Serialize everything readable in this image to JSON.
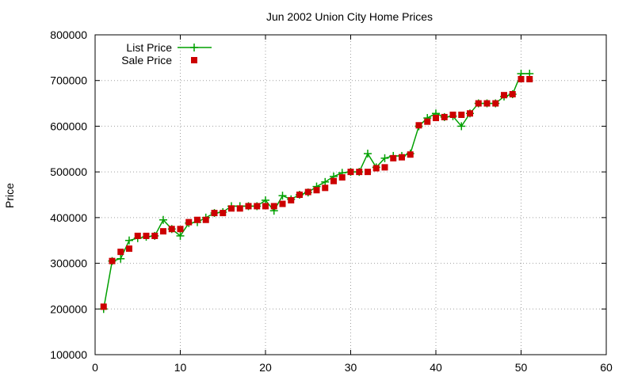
{
  "chart_data": {
    "type": "line",
    "title": "Jun 2002 Union City Home Prices",
    "xlabel": "",
    "ylabel": "Price",
    "xlim": [
      0,
      60
    ],
    "ylim": [
      100000,
      800000
    ],
    "x_ticks": [
      "0",
      "10",
      "20",
      "30",
      "40",
      "50",
      "60"
    ],
    "y_ticks": [
      "100000",
      "200000",
      "300000",
      "400000",
      "500000",
      "600000",
      "700000",
      "800000"
    ],
    "grid": true,
    "legend_position": "top-left",
    "series": [
      {
        "name": "List Price",
        "style": "line-plus",
        "color": "#00a000",
        "x": [
          1,
          2,
          3,
          4,
          5,
          6,
          7,
          8,
          9,
          10,
          11,
          12,
          13,
          14,
          15,
          16,
          17,
          18,
          19,
          20,
          21,
          22,
          23,
          24,
          25,
          26,
          27,
          28,
          29,
          30,
          31,
          32,
          33,
          34,
          35,
          36,
          37,
          38,
          39,
          40,
          41,
          42,
          43,
          44,
          45,
          46,
          47,
          48,
          49,
          50,
          51
        ],
        "values": [
          200000,
          305000,
          310000,
          350000,
          355000,
          358000,
          360000,
          395000,
          375000,
          360000,
          388000,
          390000,
          400000,
          410000,
          412000,
          425000,
          425000,
          425000,
          425000,
          438000,
          415000,
          448000,
          440000,
          450000,
          455000,
          468000,
          478000,
          490000,
          498000,
          500000,
          500000,
          540000,
          510000,
          530000,
          535000,
          535000,
          540000,
          600000,
          618000,
          628000,
          620000,
          622000,
          600000,
          628000,
          650000,
          650000,
          650000,
          665000,
          670000,
          715000,
          715000
        ]
      },
      {
        "name": "Sale Price",
        "style": "points-square",
        "color": "#cc0000",
        "x": [
          1,
          2,
          3,
          4,
          5,
          6,
          7,
          8,
          9,
          10,
          11,
          12,
          13,
          14,
          15,
          16,
          17,
          18,
          19,
          20,
          21,
          22,
          23,
          24,
          25,
          26,
          27,
          28,
          29,
          30,
          31,
          32,
          33,
          34,
          35,
          36,
          37,
          38,
          39,
          40,
          41,
          42,
          43,
          44,
          45,
          46,
          47,
          48,
          49,
          50,
          51
        ],
        "values": [
          205000,
          305000,
          325000,
          332000,
          360000,
          360000,
          360000,
          370000,
          375000,
          375000,
          390000,
          395000,
          395000,
          410000,
          410000,
          420000,
          420000,
          425000,
          425000,
          425000,
          425000,
          430000,
          438000,
          450000,
          456000,
          460000,
          465000,
          480000,
          488000,
          500000,
          500000,
          500000,
          508000,
          510000,
          530000,
          532000,
          538000,
          602000,
          610000,
          618000,
          620000,
          625000,
          625000,
          628000,
          650000,
          650000,
          650000,
          668000,
          670000,
          703000,
          703000
        ]
      }
    ]
  }
}
